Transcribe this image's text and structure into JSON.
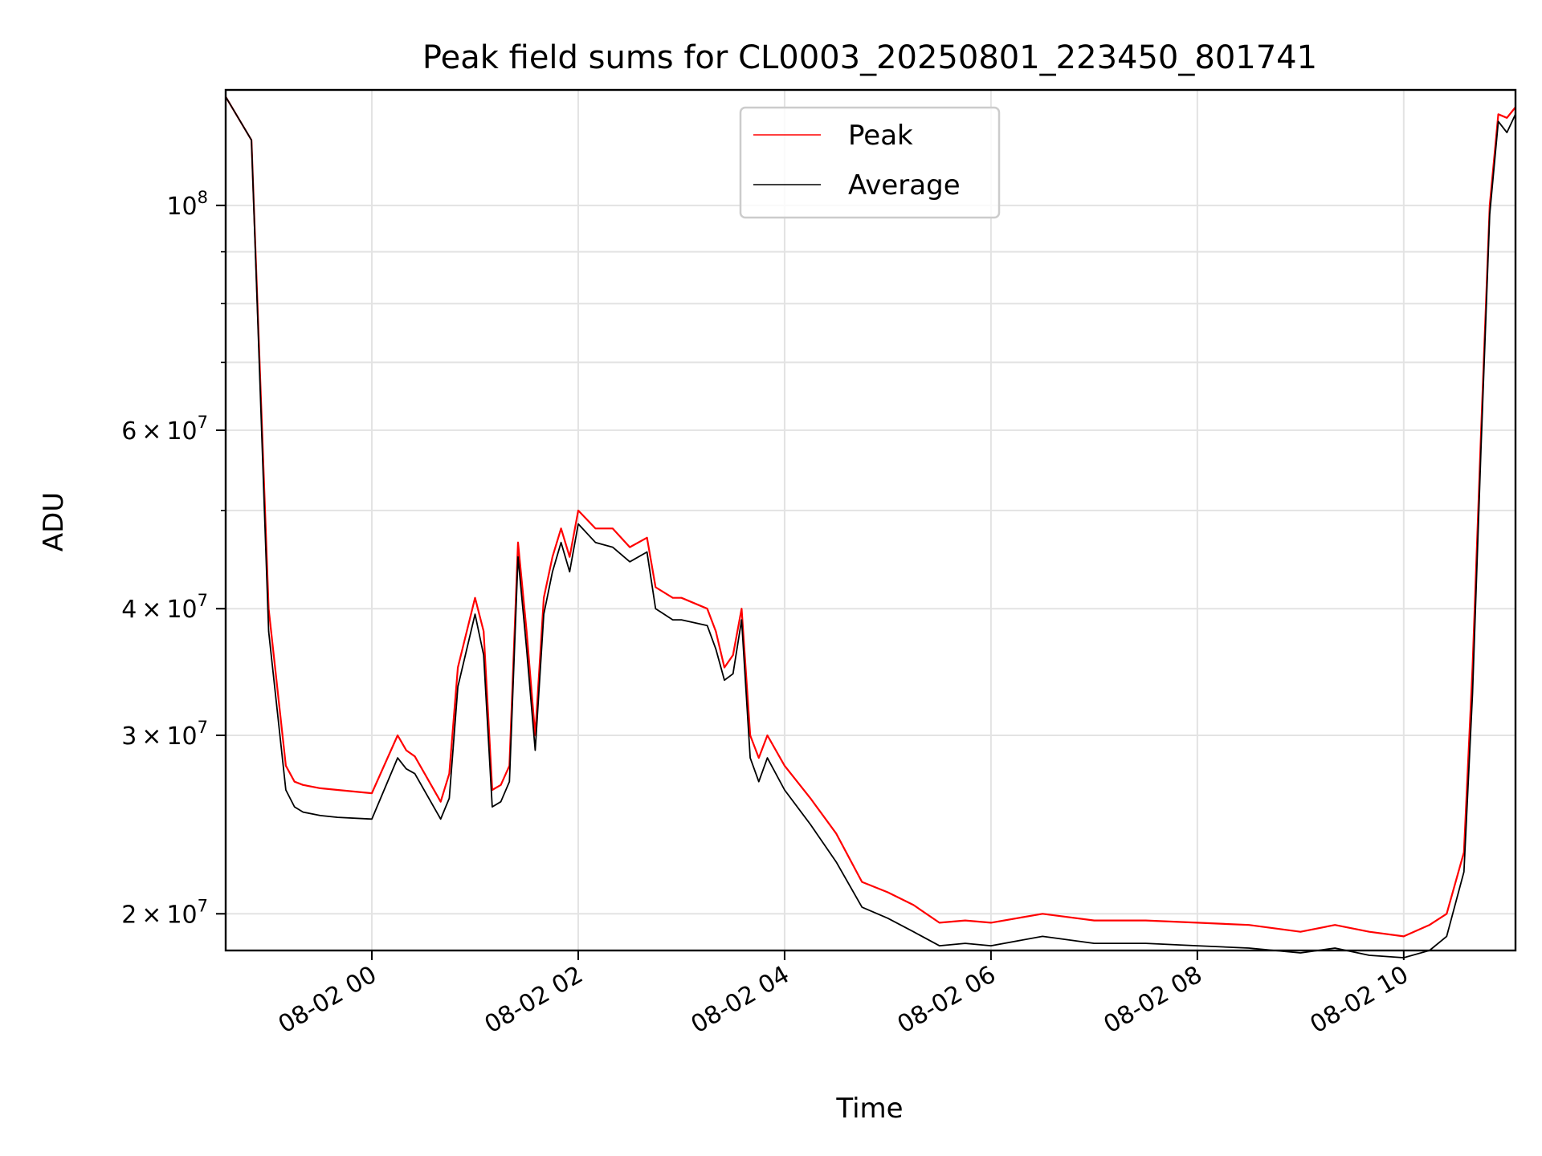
{
  "chart_data": {
    "type": "line",
    "title": "Peak field sums for CL0003_20250801_223450_801741",
    "xlabel": "Time",
    "ylabel": "ADU",
    "yscale": "log",
    "grid": true,
    "legend_position": "top-center",
    "xlim": [
      "2025-08-01 22:35",
      "2025-08-02 11:05"
    ],
    "ylim": [
      18400000,
      130000000
    ],
    "x_ticks": [
      {
        "value": "2025-08-02 00:00",
        "label": "08-02 00"
      },
      {
        "value": "2025-08-02 02:00",
        "label": "08-02 02"
      },
      {
        "value": "2025-08-02 04:00",
        "label": "08-02 04"
      },
      {
        "value": "2025-08-02 06:00",
        "label": "08-02 06"
      },
      {
        "value": "2025-08-02 08:00",
        "label": "08-02 08"
      },
      {
        "value": "2025-08-02 10:00",
        "label": "08-02 10"
      }
    ],
    "y_ticks": [
      {
        "value": 20000000,
        "mantissa": "2",
        "exp": "7"
      },
      {
        "value": 30000000,
        "mantissa": "3",
        "exp": "7"
      },
      {
        "value": 40000000,
        "mantissa": "4",
        "exp": "7"
      },
      {
        "value": 60000000,
        "mantissa": "6",
        "exp": "7"
      },
      {
        "value": 100000000,
        "mantissa": "",
        "exp": "8"
      }
    ],
    "y_minor_ticks": [
      50000000,
      70000000,
      80000000,
      90000000
    ],
    "series": [
      {
        "name": "Peak",
        "color": "#ff0000",
        "x": [
          "2025-08-01 22:35",
          "2025-08-01 22:50",
          "2025-08-01 23:00",
          "2025-08-01 23:10",
          "2025-08-01 23:15",
          "2025-08-01 23:20",
          "2025-08-01 23:30",
          "2025-08-01 23:40",
          "2025-08-02 00:00",
          "2025-08-02 00:15",
          "2025-08-02 00:20",
          "2025-08-02 00:25",
          "2025-08-02 00:40",
          "2025-08-02 00:45",
          "2025-08-02 00:50",
          "2025-08-02 01:00",
          "2025-08-02 01:05",
          "2025-08-02 01:10",
          "2025-08-02 01:15",
          "2025-08-02 01:20",
          "2025-08-02 01:25",
          "2025-08-02 01:30",
          "2025-08-02 01:35",
          "2025-08-02 01:40",
          "2025-08-02 01:45",
          "2025-08-02 01:50",
          "2025-08-02 01:55",
          "2025-08-02 02:00",
          "2025-08-02 02:10",
          "2025-08-02 02:20",
          "2025-08-02 02:30",
          "2025-08-02 02:40",
          "2025-08-02 02:45",
          "2025-08-02 02:55",
          "2025-08-02 03:00",
          "2025-08-02 03:15",
          "2025-08-02 03:20",
          "2025-08-02 03:25",
          "2025-08-02 03:30",
          "2025-08-02 03:35",
          "2025-08-02 03:40",
          "2025-08-02 03:45",
          "2025-08-02 03:50",
          "2025-08-02 04:00",
          "2025-08-02 04:15",
          "2025-08-02 04:30",
          "2025-08-02 04:45",
          "2025-08-02 05:00",
          "2025-08-02 05:15",
          "2025-08-02 05:30",
          "2025-08-02 05:45",
          "2025-08-02 06:00",
          "2025-08-02 06:30",
          "2025-08-02 07:00",
          "2025-08-02 07:30",
          "2025-08-02 08:00",
          "2025-08-02 08:30",
          "2025-08-02 09:00",
          "2025-08-02 09:20",
          "2025-08-02 09:40",
          "2025-08-02 10:00",
          "2025-08-02 10:15",
          "2025-08-02 10:25",
          "2025-08-02 10:35",
          "2025-08-02 10:40",
          "2025-08-02 10:45",
          "2025-08-02 10:50",
          "2025-08-02 10:55",
          "2025-08-02 11:00",
          "2025-08-02 11:05"
        ],
        "y": [
          128000000,
          116000000,
          40000000,
          28000000,
          27000000,
          26800000,
          26600000,
          26500000,
          26300000,
          30000000,
          29000000,
          28600000,
          25800000,
          27500000,
          35000000,
          41000000,
          38000000,
          26500000,
          26800000,
          28000000,
          46500000,
          38000000,
          30000000,
          41000000,
          45000000,
          48000000,
          45000000,
          50000000,
          48000000,
          48000000,
          46000000,
          47000000,
          42000000,
          41000000,
          41000000,
          40000000,
          38000000,
          35000000,
          36000000,
          40000000,
          30000000,
          28500000,
          30000000,
          28000000,
          26000000,
          24000000,
          21500000,
          21000000,
          20400000,
          19600000,
          19700000,
          19600000,
          20000000,
          19700000,
          19700000,
          19600000,
          19500000,
          19200000,
          19500000,
          19200000,
          19000000,
          19500000,
          20000000,
          23000000,
          35000000,
          60000000,
          100000000,
          123000000,
          122000000,
          125000000
        ]
      },
      {
        "name": "Average",
        "color": "#000000",
        "x": [
          "2025-08-01 22:35",
          "2025-08-01 22:50",
          "2025-08-01 23:00",
          "2025-08-01 23:10",
          "2025-08-01 23:15",
          "2025-08-01 23:20",
          "2025-08-01 23:30",
          "2025-08-01 23:40",
          "2025-08-02 00:00",
          "2025-08-02 00:15",
          "2025-08-02 00:20",
          "2025-08-02 00:25",
          "2025-08-02 00:40",
          "2025-08-02 00:45",
          "2025-08-02 00:50",
          "2025-08-02 01:00",
          "2025-08-02 01:05",
          "2025-08-02 01:10",
          "2025-08-02 01:15",
          "2025-08-02 01:20",
          "2025-08-02 01:25",
          "2025-08-02 01:30",
          "2025-08-02 01:35",
          "2025-08-02 01:40",
          "2025-08-02 01:45",
          "2025-08-02 01:50",
          "2025-08-02 01:55",
          "2025-08-02 02:00",
          "2025-08-02 02:10",
          "2025-08-02 02:20",
          "2025-08-02 02:30",
          "2025-08-02 02:40",
          "2025-08-02 02:45",
          "2025-08-02 02:55",
          "2025-08-02 03:00",
          "2025-08-02 03:15",
          "2025-08-02 03:20",
          "2025-08-02 03:25",
          "2025-08-02 03:30",
          "2025-08-02 03:35",
          "2025-08-02 03:40",
          "2025-08-02 03:45",
          "2025-08-02 03:50",
          "2025-08-02 04:00",
          "2025-08-02 04:15",
          "2025-08-02 04:30",
          "2025-08-02 04:45",
          "2025-08-02 05:00",
          "2025-08-02 05:15",
          "2025-08-02 05:30",
          "2025-08-02 05:45",
          "2025-08-02 06:00",
          "2025-08-02 06:30",
          "2025-08-02 07:00",
          "2025-08-02 07:30",
          "2025-08-02 08:00",
          "2025-08-02 08:30",
          "2025-08-02 09:00",
          "2025-08-02 09:20",
          "2025-08-02 09:40",
          "2025-08-02 10:00",
          "2025-08-02 10:15",
          "2025-08-02 10:25",
          "2025-08-02 10:35",
          "2025-08-02 10:40",
          "2025-08-02 10:45",
          "2025-08-02 10:50",
          "2025-08-02 10:55",
          "2025-08-02 11:00",
          "2025-08-02 11:05"
        ],
        "y": [
          128000000,
          116000000,
          38000000,
          26500000,
          25500000,
          25200000,
          25000000,
          24900000,
          24800000,
          28500000,
          27800000,
          27500000,
          24800000,
          26000000,
          33500000,
          39500000,
          36000000,
          25500000,
          25800000,
          27000000,
          45000000,
          36500000,
          29000000,
          39500000,
          43500000,
          46500000,
          43500000,
          48500000,
          46500000,
          46000000,
          44500000,
          45500000,
          40000000,
          39000000,
          39000000,
          38500000,
          36500000,
          34000000,
          34500000,
          39000000,
          28500000,
          27000000,
          28500000,
          26500000,
          24500000,
          22500000,
          20300000,
          19800000,
          19200000,
          18600000,
          18700000,
          18600000,
          19000000,
          18700000,
          18700000,
          18600000,
          18500000,
          18300000,
          18500000,
          18200000,
          18100000,
          18400000,
          19000000,
          22000000,
          33000000,
          58000000,
          98000000,
          121000000,
          118000000,
          123000000
        ]
      }
    ]
  }
}
